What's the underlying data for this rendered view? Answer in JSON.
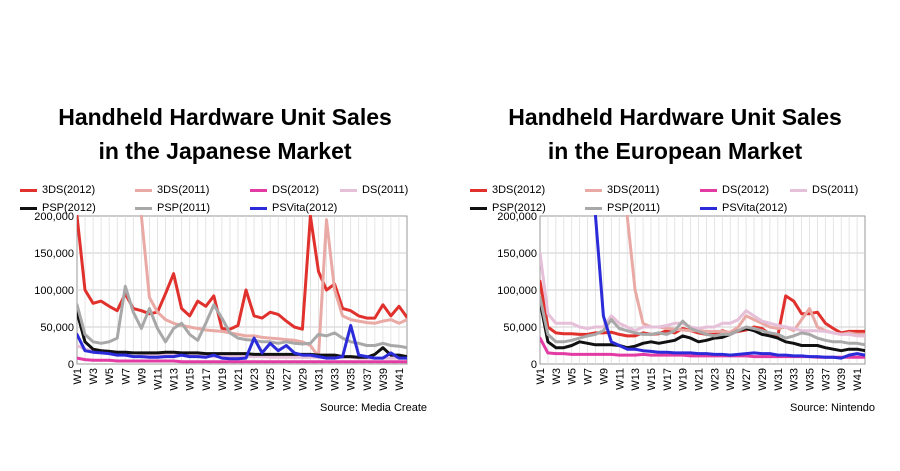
{
  "chart_data": [
    {
      "type": "line",
      "title": "Handheld Hardware Unit Sales\nin the Japanese Market",
      "source": "Source: Media Create",
      "ylim": [
        0,
        200000
      ],
      "yticks": [
        "0",
        "50,000",
        "100,000",
        "150,000",
        "200,000"
      ],
      "xticks": [
        "W1",
        "W3",
        "W5",
        "W7",
        "W9",
        "W11",
        "W13",
        "W15",
        "W17",
        "W19",
        "W21",
        "W23",
        "W25",
        "W27",
        "W29",
        "W31",
        "W33",
        "W35",
        "W37",
        "W39",
        "W41"
      ],
      "x": [
        1,
        2,
        3,
        4,
        5,
        6,
        7,
        8,
        9,
        10,
        11,
        12,
        13,
        14,
        15,
        16,
        17,
        18,
        19,
        20,
        21,
        22,
        23,
        24,
        25,
        26,
        27,
        28,
        29,
        30,
        31,
        32,
        33,
        34,
        35,
        36,
        37,
        38,
        39,
        40,
        41,
        42
      ],
      "grid": true,
      "legend_position": "top",
      "series": [
        {
          "name": "3DS(2012)",
          "color": "#e0312d",
          "values": [
            200000,
            100000,
            82000,
            85000,
            78000,
            72000,
            95000,
            75000,
            72000,
            68000,
            70000,
            95000,
            122000,
            75000,
            65000,
            85000,
            78000,
            92000,
            48000,
            47000,
            52000,
            100000,
            65000,
            62000,
            70000,
            67000,
            58000,
            50000,
            47000,
            205000,
            125000,
            100000,
            108000,
            75000,
            72000,
            65000,
            62000,
            62000,
            80000,
            65000,
            78000,
            63000
          ]
        },
        {
          "name": "3DS(2011)",
          "color": "#e9aaa6",
          "values": [
            null,
            null,
            null,
            null,
            null,
            null,
            null,
            null,
            200000,
            90000,
            70000,
            60000,
            55000,
            52000,
            50000,
            48000,
            46000,
            45000,
            44000,
            42000,
            40000,
            38000,
            38000,
            36000,
            35000,
            34000,
            33000,
            32000,
            30000,
            25000,
            10000,
            195000,
            100000,
            65000,
            60000,
            58000,
            56000,
            55000,
            58000,
            60000,
            55000,
            60000
          ]
        },
        {
          "name": "DS(2012)",
          "color": "#e23ca4",
          "values": [
            8000,
            6000,
            5000,
            5000,
            5000,
            4000,
            4000,
            4000,
            4000,
            4000,
            4000,
            4000,
            4000,
            3000,
            3000,
            3000,
            3000,
            3000,
            3000,
            3000,
            3000,
            3000,
            3000,
            3000,
            3000,
            3000,
            3000,
            3000,
            3000,
            3000,
            3000,
            3000,
            3000,
            3000,
            3000,
            3000,
            3000,
            3000,
            3000,
            3000,
            3000,
            3000
          ]
        },
        {
          "name": "DS(2011)",
          "color": "#e6bfd8",
          "values": [
            25000,
            20000,
            18000,
            18000,
            17000,
            16000,
            15000,
            15000,
            14000,
            13000,
            13000,
            12000,
            12000,
            12000,
            11000,
            11000,
            11000,
            10000,
            10000,
            10000,
            10000,
            10000,
            10000,
            10000,
            9000,
            9000,
            9000,
            9000,
            9000,
            9000,
            9000,
            9000,
            9000,
            9000,
            9000,
            8000,
            8000,
            8000,
            8000,
            8000,
            8000,
            8000
          ]
        },
        {
          "name": "PSP(2012)",
          "color": "#111111",
          "values": [
            70000,
            30000,
            20000,
            18000,
            17000,
            16000,
            16000,
            15000,
            15000,
            15000,
            15000,
            16000,
            16000,
            15000,
            15000,
            15000,
            14000,
            14000,
            14000,
            14000,
            14000,
            14000,
            13000,
            13000,
            13000,
            13000,
            13000,
            13000,
            13000,
            13000,
            12000,
            12000,
            12000,
            10000,
            10000,
            9000,
            9000,
            13000,
            22000,
            12000,
            12000,
            10000
          ]
        },
        {
          "name": "PSP(2011)",
          "color": "#a8a8a8",
          "values": [
            80000,
            40000,
            30000,
            28000,
            30000,
            35000,
            105000,
            70000,
            48000,
            75000,
            48000,
            30000,
            48000,
            55000,
            40000,
            32000,
            55000,
            80000,
            62000,
            42000,
            35000,
            33000,
            32000,
            30000,
            30000,
            28000,
            30000,
            28000,
            27000,
            28000,
            40000,
            38000,
            42000,
            35000,
            30000,
            28000,
            25000,
            25000,
            28000,
            25000,
            24000,
            22000
          ]
        },
        {
          "name": "PSVita(2012)",
          "color": "#2b2bd9",
          "values": [
            40000,
            18000,
            16000,
            15000,
            14000,
            12000,
            12000,
            10000,
            10000,
            9000,
            9000,
            10000,
            10000,
            12000,
            10000,
            10000,
            9000,
            12000,
            8000,
            7000,
            7000,
            8000,
            35000,
            15000,
            28000,
            18000,
            25000,
            15000,
            12000,
            12000,
            10000,
            8000,
            8000,
            10000,
            52000,
            12000,
            10000,
            8000,
            8000,
            15000,
            8000,
            8000
          ]
        }
      ]
    },
    {
      "type": "line",
      "title": "Handheld Hardware Unit Sales\nin the European Market",
      "source": "Source: Nintendo",
      "ylim": [
        0,
        200000
      ],
      "yticks": [
        "0",
        "50,000",
        "100,000",
        "150,000",
        "200,000"
      ],
      "xticks": [
        "W1",
        "W3",
        "W5",
        "W7",
        "W9",
        "W11",
        "W13",
        "W15",
        "W17",
        "W19",
        "W21",
        "W23",
        "W25",
        "W27",
        "W29",
        "W31",
        "W33",
        "W35",
        "W37",
        "W39",
        "W41"
      ],
      "x": [
        1,
        2,
        3,
        4,
        5,
        6,
        7,
        8,
        9,
        10,
        11,
        12,
        13,
        14,
        15,
        16,
        17,
        18,
        19,
        20,
        21,
        22,
        23,
        24,
        25,
        26,
        27,
        28,
        29,
        30,
        31,
        32,
        33,
        34,
        35,
        36,
        37,
        38,
        39,
        40,
        41,
        42
      ],
      "grid": true,
      "legend_position": "top",
      "series": [
        {
          "name": "3DS(2012)",
          "color": "#e0312d",
          "values": [
            112000,
            50000,
            42000,
            41000,
            41000,
            40000,
            40000,
            42000,
            42000,
            43000,
            40000,
            38000,
            38000,
            42000,
            40000,
            41000,
            45000,
            42000,
            48000,
            45000,
            42000,
            40000,
            40000,
            45000,
            42000,
            44000,
            46000,
            50000,
            48000,
            40000,
            38000,
            92000,
            85000,
            68000,
            68000,
            70000,
            55000,
            48000,
            42000,
            44000,
            44000,
            44000
          ]
        },
        {
          "name": "3DS(2011)",
          "color": "#e9aaa6",
          "values": [
            null,
            null,
            null,
            null,
            null,
            null,
            null,
            null,
            null,
            null,
            null,
            200000,
            100000,
            55000,
            50000,
            50000,
            48000,
            47000,
            46000,
            45000,
            45000,
            44000,
            44000,
            44000,
            43000,
            50000,
            65000,
            60000,
            55000,
            50000,
            48000,
            50000,
            45000,
            60000,
            75000,
            50000,
            45000,
            42000,
            40000,
            42000,
            40000,
            40000
          ]
        },
        {
          "name": "DS(2012)",
          "color": "#e23ca4",
          "values": [
            35000,
            15000,
            14000,
            14000,
            13000,
            13000,
            13000,
            13000,
            13000,
            13000,
            12000,
            12000,
            12000,
            13000,
            12000,
            12000,
            12000,
            12000,
            12000,
            11000,
            11000,
            11000,
            11000,
            11000,
            11000,
            11000,
            11000,
            10000,
            10000,
            10000,
            10000,
            10000,
            10000,
            10000,
            10000,
            9000,
            9000,
            9000,
            9000,
            9000,
            9000,
            9000
          ]
        },
        {
          "name": "DS(2011)",
          "color": "#e6bfd8",
          "values": [
            150000,
            68000,
            55000,
            55000,
            55000,
            50000,
            48000,
            50000,
            50000,
            65000,
            55000,
            50000,
            45000,
            50000,
            50000,
            50000,
            52000,
            55000,
            55000,
            50000,
            48000,
            50000,
            50000,
            55000,
            55000,
            60000,
            72000,
            65000,
            58000,
            55000,
            52000,
            50000,
            48000,
            45000,
            45000,
            45000,
            44000,
            42000,
            40000,
            40000,
            38000,
            38000
          ]
        },
        {
          "name": "PSP(2012)",
          "color": "#111111",
          "values": [
            85000,
            30000,
            22000,
            22000,
            25000,
            30000,
            28000,
            26000,
            26000,
            26000,
            25000,
            22000,
            24000,
            28000,
            30000,
            28000,
            30000,
            32000,
            38000,
            35000,
            30000,
            32000,
            35000,
            36000,
            40000,
            45000,
            48000,
            45000,
            40000,
            38000,
            35000,
            30000,
            28000,
            25000,
            25000,
            25000,
            22000,
            20000,
            18000,
            20000,
            20000,
            18000
          ]
        },
        {
          "name": "PSP(2011)",
          "color": "#a8a8a8",
          "values": [
            90000,
            40000,
            30000,
            30000,
            32000,
            35000,
            38000,
            40000,
            45000,
            60000,
            48000,
            45000,
            42000,
            40000,
            40000,
            42000,
            40000,
            45000,
            58000,
            48000,
            44000,
            40000,
            38000,
            40000,
            40000,
            45000,
            50000,
            48000,
            45000,
            42000,
            40000,
            35000,
            38000,
            42000,
            40000,
            35000,
            32000,
            30000,
            30000,
            28000,
            28000,
            26000
          ]
        },
        {
          "name": "PSVita(2012)",
          "color": "#2b2bd9",
          "values": [
            null,
            null,
            null,
            null,
            null,
            null,
            null,
            200000,
            65000,
            30000,
            25000,
            20000,
            20000,
            18000,
            17000,
            16000,
            16000,
            15000,
            15000,
            15000,
            14000,
            14000,
            13000,
            13000,
            12000,
            13000,
            14000,
            15000,
            14000,
            14000,
            12000,
            12000,
            11000,
            11000,
            10000,
            10000,
            9000,
            9000,
            8000,
            12000,
            14000,
            12000
          ]
        }
      ]
    }
  ]
}
